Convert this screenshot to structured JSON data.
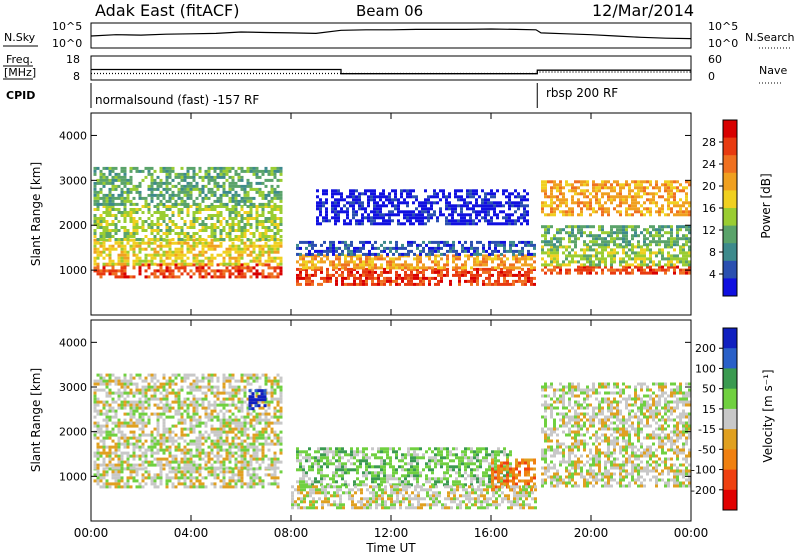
{
  "header": {
    "station": "Adak East (fitACF)",
    "beam": "Beam 06",
    "date": "12/Mar/2014"
  },
  "chart_data": [
    {
      "type": "line",
      "panel": "noise",
      "left_label": "N.Sky",
      "right_label": "N.Search",
      "left_ticks": [
        "10^5",
        "10^0"
      ],
      "right_ticks": [
        "10^5",
        "10^0"
      ],
      "x": [
        0,
        1,
        2,
        3,
        4,
        5,
        6,
        7,
        8,
        9,
        10,
        11,
        12,
        13,
        14,
        15,
        16,
        17,
        17.8,
        18,
        19,
        20,
        21,
        22,
        23,
        24
      ],
      "series": [
        {
          "values": [
            2.5,
            2.8,
            2.7,
            2.9,
            3.0,
            3.1,
            3.4,
            3.3,
            3.2,
            3.1,
            3.8,
            3.9,
            3.9,
            4.0,
            4.0,
            4.0,
            4.1,
            4.0,
            3.9,
            3.2,
            3.0,
            2.8,
            2.5,
            2.2,
            2.0,
            1.9
          ]
        }
      ]
    },
    {
      "type": "line",
      "panel": "frequency",
      "left_label_lines": [
        "Freq.",
        "[MHz]"
      ],
      "right_label": "Nave",
      "left_ticks": [
        "18",
        "8"
      ],
      "right_ticks": [
        "60",
        "0"
      ],
      "freq_steps": [
        {
          "from": 0,
          "to": 10,
          "value": 12.3
        },
        {
          "from": 10,
          "to": 17.85,
          "value": 10.4
        },
        {
          "from": 17.85,
          "to": 24,
          "value": 12.0
        }
      ],
      "nave_steps": [
        {
          "from": 0,
          "to": 17.85,
          "value": 15
        },
        {
          "from": 17.85,
          "to": 24,
          "value": 19
        }
      ]
    },
    {
      "type": "table",
      "panel": "cpid",
      "left_label": "CPID",
      "segments": [
        {
          "start": 0,
          "label": "normalsound (fast) -157 RF"
        },
        {
          "start": 17.85,
          "label": "rbsp 200 RF"
        }
      ]
    },
    {
      "type": "heatmap",
      "panel": "power",
      "ylabel": "Slant Range [km]",
      "yticks": [
        "1000",
        "2000",
        "3000",
        "4000"
      ],
      "ylim": [
        0,
        4500
      ],
      "xlim": [
        0,
        24
      ],
      "colorbar_label": "Power [dB]",
      "colorbar_ticks": [
        "4",
        "8",
        "12",
        "16",
        "20",
        "24",
        "28"
      ],
      "colors": [
        "#1010e0",
        "#2a4fb0",
        "#3d8a8c",
        "#5aa36a",
        "#9acd32",
        "#f0d020",
        "#f0a020",
        "#ef7020",
        "#e83a10",
        "#d80000"
      ],
      "echo_bands": [
        {
          "t0": 0.1,
          "t1": 7.6,
          "r0": 850,
          "r1": 1150,
          "level": 8
        },
        {
          "t0": 0.1,
          "t1": 7.6,
          "r0": 1150,
          "r1": 1700,
          "level": 5
        },
        {
          "t0": 0.1,
          "t1": 7.6,
          "r0": 1700,
          "r1": 2450,
          "level": 4
        },
        {
          "t0": 0.1,
          "t1": 7.6,
          "r0": 2450,
          "r1": 3300,
          "level": 3
        },
        {
          "t0": 8.2,
          "t1": 17.8,
          "r0": 700,
          "r1": 1050,
          "level": 8
        },
        {
          "t0": 8.2,
          "t1": 17.8,
          "r0": 1050,
          "r1": 1350,
          "level": 6
        },
        {
          "t0": 8.2,
          "t1": 17.8,
          "r0": 1350,
          "r1": 1650,
          "level": 1
        },
        {
          "t0": 9.0,
          "t1": 17.5,
          "r0": 2000,
          "r1": 2800,
          "level": 0
        },
        {
          "t0": 18.0,
          "t1": 23.9,
          "r0": 900,
          "r1": 1100,
          "level": 8
        },
        {
          "t0": 18.0,
          "t1": 23.9,
          "r0": 1100,
          "r1": 1550,
          "level": 4
        },
        {
          "t0": 18.0,
          "t1": 23.9,
          "r0": 1550,
          "r1": 2000,
          "level": 3
        },
        {
          "t0": 18.0,
          "t1": 23.9,
          "r0": 2200,
          "r1": 3000,
          "level": 6
        }
      ]
    },
    {
      "type": "heatmap",
      "panel": "velocity",
      "ylabel": "Slant Range [km]",
      "yticks": [
        "1000",
        "2000",
        "3000",
        "4000"
      ],
      "ylim": [
        0,
        4500
      ],
      "xlim": [
        0,
        24
      ],
      "xticks": [
        "00:00",
        "04:00",
        "08:00",
        "12:00",
        "16:00",
        "20:00",
        "00:00"
      ],
      "xlabel": "Time UT",
      "colorbar_label": "Velocity [m s⁻¹]",
      "colorbar_ticks": [
        "200",
        "100",
        "50",
        "15",
        "-15",
        "-50",
        "-100",
        "-200"
      ],
      "colors": [
        "#1020c0",
        "#2a60c8",
        "#3a9a50",
        "#70d040",
        "#c8c8c8",
        "#e0a020",
        "#f08010",
        "#ef4010",
        "#e00000"
      ],
      "echo_bands": [
        {
          "t0": 0.1,
          "t1": 7.6,
          "r0": 750,
          "r1": 1200,
          "level": 4
        },
        {
          "t0": 0.1,
          "t1": 7.6,
          "r0": 1200,
          "r1": 3300,
          "level": 4
        },
        {
          "t0": 6.3,
          "t1": 7.0,
          "r0": 2500,
          "r1": 2950,
          "level": 0
        },
        {
          "t0": 8.2,
          "t1": 16.8,
          "r0": 800,
          "r1": 1650,
          "level": 3
        },
        {
          "t0": 16.0,
          "t1": 17.7,
          "r0": 700,
          "r1": 1400,
          "level": 6
        },
        {
          "t0": 8.0,
          "t1": 17.8,
          "r0": 300,
          "r1": 800,
          "level": 4
        },
        {
          "t0": 18.0,
          "t1": 23.9,
          "r0": 800,
          "r1": 3100,
          "level": 4
        }
      ]
    }
  ]
}
